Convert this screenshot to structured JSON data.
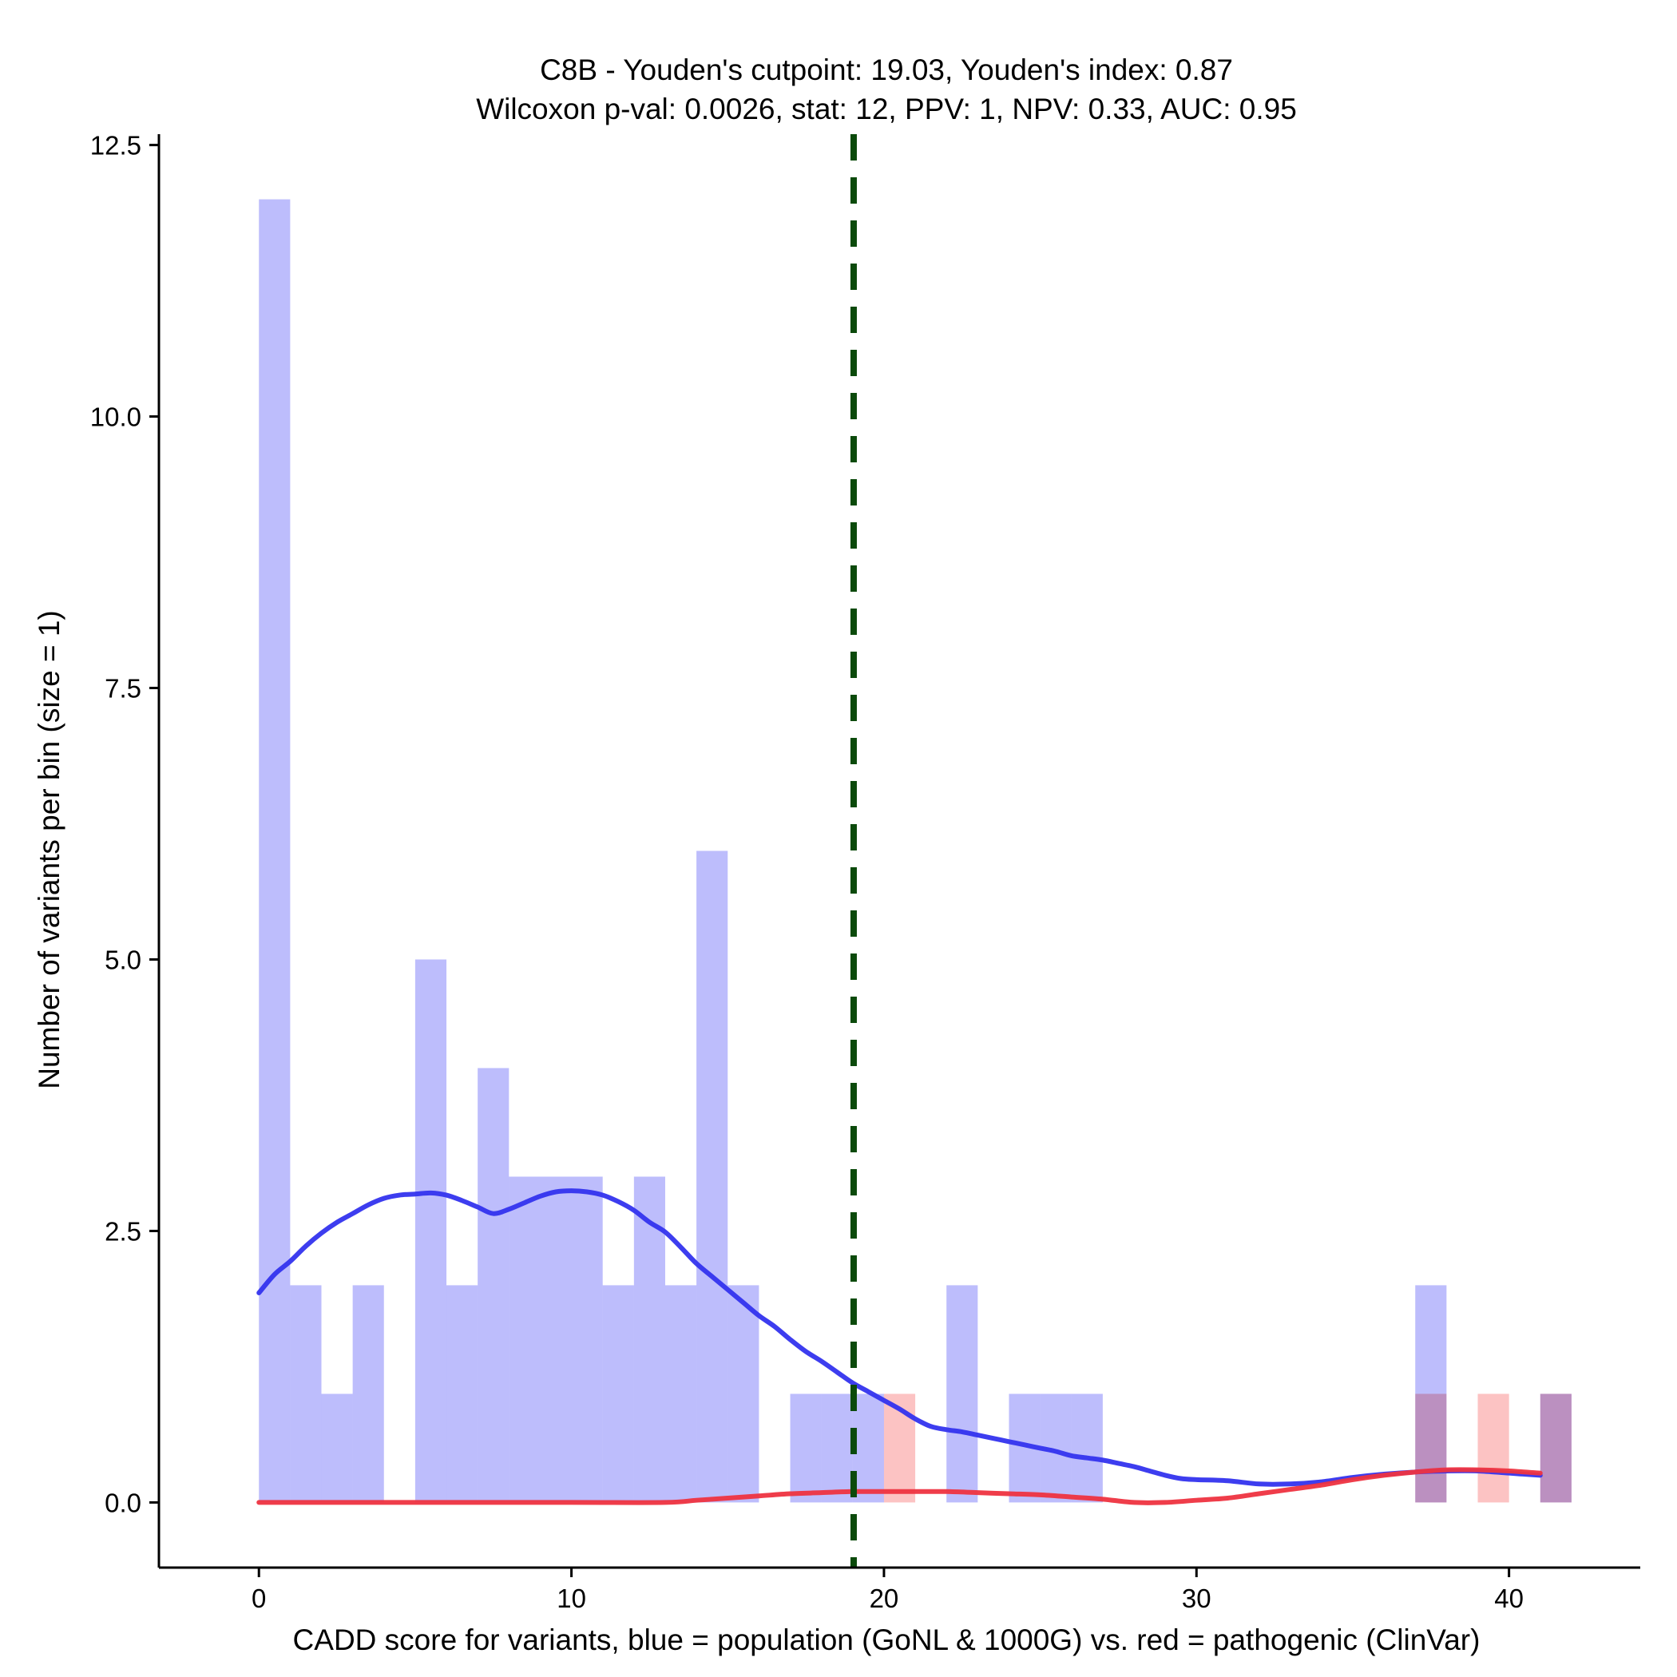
{
  "chart_data": {
    "type": "bar",
    "title_line1": "C8B - Youden's cutpoint: 19.03, Youden's index: 0.87",
    "title_line2": "Wilcoxon p-val: 0.0026, stat: 12, PPV: 1, NPV: 0.33, AUC: 0.95",
    "xlabel": "CADD score for variants, blue = population (GoNL & 1000G) vs. red = pathogenic (ClinVar)",
    "ylabel": "Number of variants per bin (size = 1)",
    "xlim": [
      -3.2,
      44.2
    ],
    "ylim": [
      -0.6,
      12.6
    ],
    "x_ticks": [
      0,
      10,
      20,
      30,
      40
    ],
    "x_tick_labels": [
      "0",
      "10",
      "20",
      "30",
      "40"
    ],
    "y_ticks": [
      0,
      2.5,
      5,
      7.5,
      10,
      12.5
    ],
    "y_tick_labels": [
      "0.0",
      "2.5",
      "5.0",
      "7.5",
      "10.0",
      "12.5"
    ],
    "cutpoint": 19.03,
    "colors": {
      "population_bar": "#bdbdfc",
      "pathogenic_bar": "#fcbdbd",
      "population_line": "#3333ee",
      "pathogenic_line": "#ee3340",
      "cutpoint_line": "#0b4a0b",
      "axis": "#000000"
    },
    "series": [
      {
        "name": "population (GoNL & 1000G)",
        "bins": [
          {
            "x0": 0,
            "x1": 1,
            "count": 12
          },
          {
            "x0": 1,
            "x1": 2,
            "count": 2
          },
          {
            "x0": 2,
            "x1": 3,
            "count": 1
          },
          {
            "x0": 3,
            "x1": 4,
            "count": 2
          },
          {
            "x0": 5,
            "x1": 6,
            "count": 5
          },
          {
            "x0": 6,
            "x1": 7,
            "count": 2
          },
          {
            "x0": 7,
            "x1": 8,
            "count": 4
          },
          {
            "x0": 8,
            "x1": 9,
            "count": 3
          },
          {
            "x0": 9,
            "x1": 10,
            "count": 3
          },
          {
            "x0": 10,
            "x1": 11,
            "count": 3
          },
          {
            "x0": 11,
            "x1": 12,
            "count": 2
          },
          {
            "x0": 12,
            "x1": 13,
            "count": 3
          },
          {
            "x0": 13,
            "x1": 14,
            "count": 2
          },
          {
            "x0": 14,
            "x1": 15,
            "count": 6
          },
          {
            "x0": 15,
            "x1": 16,
            "count": 2
          },
          {
            "x0": 17,
            "x1": 18,
            "count": 1
          },
          {
            "x0": 18,
            "x1": 19,
            "count": 1
          },
          {
            "x0": 19,
            "x1": 20,
            "count": 1
          },
          {
            "x0": 22,
            "x1": 23,
            "count": 2
          },
          {
            "x0": 24,
            "x1": 25,
            "count": 1
          },
          {
            "x0": 25,
            "x1": 26,
            "count": 1
          },
          {
            "x0": 26,
            "x1": 27,
            "count": 1
          },
          {
            "x0": 37,
            "x1": 38,
            "count": 2
          },
          {
            "x0": 41,
            "x1": 42,
            "count": 1
          }
        ],
        "density": [
          [
            0,
            1.93
          ],
          [
            0.5,
            2.1
          ],
          [
            1,
            2.22
          ],
          [
            1.5,
            2.36
          ],
          [
            2,
            2.48
          ],
          [
            2.5,
            2.58
          ],
          [
            3,
            2.66
          ],
          [
            3.5,
            2.74
          ],
          [
            4,
            2.8
          ],
          [
            4.5,
            2.83
          ],
          [
            5,
            2.84
          ],
          [
            5.5,
            2.85
          ],
          [
            6,
            2.83
          ],
          [
            6.5,
            2.78
          ],
          [
            7,
            2.72
          ],
          [
            7.5,
            2.66
          ],
          [
            8,
            2.7
          ],
          [
            8.5,
            2.76
          ],
          [
            9,
            2.82
          ],
          [
            9.5,
            2.86
          ],
          [
            10,
            2.87
          ],
          [
            10.5,
            2.86
          ],
          [
            11,
            2.83
          ],
          [
            11.5,
            2.77
          ],
          [
            12,
            2.69
          ],
          [
            12.5,
            2.58
          ],
          [
            13,
            2.49
          ],
          [
            13.5,
            2.35
          ],
          [
            14,
            2.2
          ],
          [
            14.5,
            2.08
          ],
          [
            15,
            1.96
          ],
          [
            15.5,
            1.84
          ],
          [
            16,
            1.72
          ],
          [
            16.5,
            1.62
          ],
          [
            17,
            1.5
          ],
          [
            17.5,
            1.39
          ],
          [
            18,
            1.3
          ],
          [
            18.5,
            1.2
          ],
          [
            19,
            1.1
          ],
          [
            19.5,
            1.02
          ],
          [
            20,
            0.94
          ],
          [
            20.5,
            0.86
          ],
          [
            21,
            0.77
          ],
          [
            21.5,
            0.7
          ],
          [
            22,
            0.67
          ],
          [
            22.5,
            0.65
          ],
          [
            23,
            0.62
          ],
          [
            23.5,
            0.59
          ],
          [
            24,
            0.56
          ],
          [
            24.5,
            0.53
          ],
          [
            25,
            0.5
          ],
          [
            25.5,
            0.47
          ],
          [
            26,
            0.43
          ],
          [
            26.5,
            0.41
          ],
          [
            27,
            0.39
          ],
          [
            27.5,
            0.36
          ],
          [
            28,
            0.33
          ],
          [
            28.5,
            0.29
          ],
          [
            29,
            0.25
          ],
          [
            29.5,
            0.22
          ],
          [
            30,
            0.21
          ],
          [
            31,
            0.2
          ],
          [
            32,
            0.17
          ],
          [
            33,
            0.17
          ],
          [
            34,
            0.19
          ],
          [
            35,
            0.23
          ],
          [
            36,
            0.26
          ],
          [
            37,
            0.28
          ],
          [
            38,
            0.29
          ],
          [
            39,
            0.29
          ],
          [
            40,
            0.27
          ],
          [
            41,
            0.25
          ]
        ]
      },
      {
        "name": "pathogenic (ClinVar)",
        "bins": [
          {
            "x0": 20,
            "x1": 21,
            "count": 1
          },
          {
            "x0": 37,
            "x1": 38,
            "count": 1
          },
          {
            "x0": 39,
            "x1": 40,
            "count": 1
          },
          {
            "x0": 41,
            "x1": 42,
            "count": 1
          }
        ],
        "density": [
          [
            0,
            0.0
          ],
          [
            5,
            0.0
          ],
          [
            10,
            0.0
          ],
          [
            13,
            0.0
          ],
          [
            14,
            0.02
          ],
          [
            15,
            0.04
          ],
          [
            16,
            0.06
          ],
          [
            17,
            0.08
          ],
          [
            18,
            0.09
          ],
          [
            19,
            0.1
          ],
          [
            20,
            0.1
          ],
          [
            21,
            0.1
          ],
          [
            22,
            0.1
          ],
          [
            23,
            0.09
          ],
          [
            24,
            0.08
          ],
          [
            25,
            0.07
          ],
          [
            26,
            0.05
          ],
          [
            27,
            0.03
          ],
          [
            28,
            0.0
          ],
          [
            29,
            0.0
          ],
          [
            30,
            0.02
          ],
          [
            31,
            0.04
          ],
          [
            32,
            0.08
          ],
          [
            33,
            0.12
          ],
          [
            34,
            0.16
          ],
          [
            35,
            0.21
          ],
          [
            36,
            0.25
          ],
          [
            37,
            0.28
          ],
          [
            38,
            0.3
          ],
          [
            39,
            0.3
          ],
          [
            40,
            0.29
          ],
          [
            41,
            0.27
          ]
        ]
      }
    ]
  }
}
